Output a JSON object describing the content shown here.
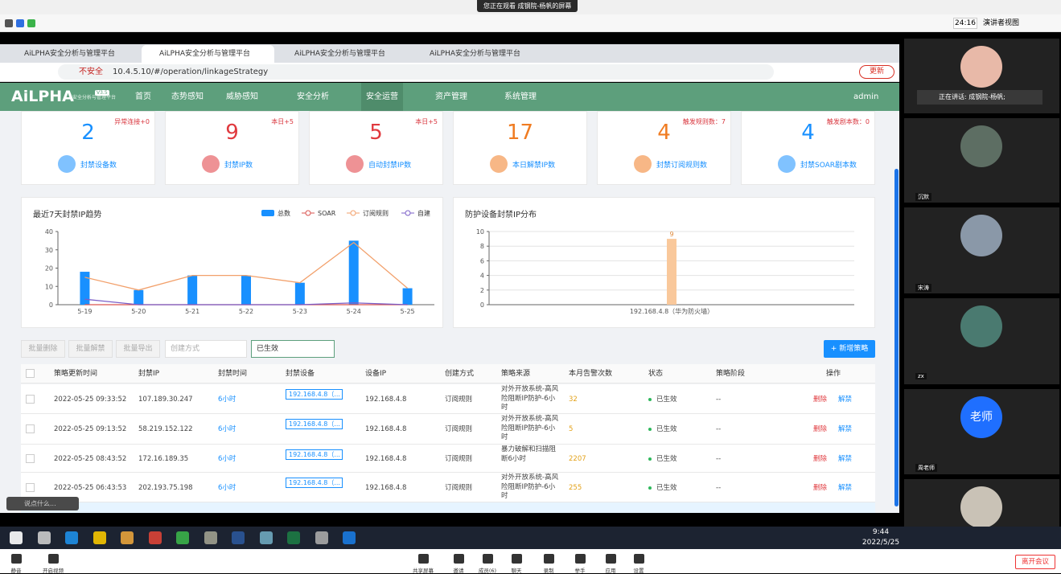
{
  "meeting": {
    "banner": "您正在观看 成钢院-杨帆的屏幕",
    "timer": "24:16",
    "view": "演讲者视图",
    "speaking": "正在讲话: 成钢院-杨帆;"
  },
  "browser": {
    "tabs": [
      "AiLPHA安全分析与管理平台",
      "AiLPHA安全分析与管理平台",
      "AiLPHA安全分析与管理平台",
      "AiLPHA安全分析与管理平台"
    ],
    "insecure": "不安全",
    "url": "10.4.5.10/#/operation/linkageStrategy",
    "update": "更新"
  },
  "app": {
    "logo": "AiLPHA",
    "subtitle": "安全分析与管理平台",
    "version": "V3.5",
    "nav": [
      "首页",
      "态势感知",
      "威胁感知",
      "安全分析",
      "安全运营",
      "资产管理",
      "系统管理"
    ],
    "user": "admin"
  },
  "cards": [
    {
      "note": "异常连接+0",
      "value": 2,
      "label": "封禁设备数",
      "color": "#1890ff"
    },
    {
      "note": "本日+5",
      "value": 9,
      "label": "封禁IP数",
      "color": "#e0393e"
    },
    {
      "note": "本日+5",
      "value": 5,
      "label": "自动封禁IP数",
      "color": "#e0393e"
    },
    {
      "value": 17,
      "label": "本日解禁IP数",
      "color": "#f07c22"
    },
    {
      "note": "触发规则数：7",
      "value": 4,
      "label": "封禁订阅规则数",
      "color": "#f07c22"
    },
    {
      "note": "触发剧本数：0",
      "value": 4,
      "label": "封禁SOAR剧本数",
      "color": "#1890ff"
    }
  ],
  "chart_data": [
    {
      "type": "combo",
      "title": "最近7天封禁IP趋势",
      "categories": [
        "5-19",
        "5-20",
        "5-21",
        "5-22",
        "5-23",
        "5-24",
        "5-25"
      ],
      "series": [
        {
          "name": "总数",
          "type": "bar",
          "color": "#1890ff",
          "values": [
            18,
            8,
            16,
            16,
            12,
            35,
            9
          ]
        },
        {
          "name": "SOAR",
          "type": "line",
          "color": "#d9534f",
          "values": [
            0,
            0,
            0,
            0,
            0,
            0,
            0
          ]
        },
        {
          "name": "订阅规则",
          "type": "line",
          "color": "#f2a06b",
          "values": [
            15,
            8,
            16,
            16,
            12,
            34,
            9
          ]
        },
        {
          "name": "自建",
          "type": "line",
          "color": "#7b5fc8",
          "values": [
            3,
            0,
            0,
            0,
            0,
            1,
            0
          ]
        }
      ],
      "ylim": [
        0,
        40
      ],
      "yticks": [
        0,
        10,
        20,
        30,
        40
      ],
      "grid": false,
      "legend": "top-right"
    },
    {
      "type": "bar",
      "title": "防护设备封禁IP分布",
      "categories": [
        "192.168.4.8（华为防火墙）"
      ],
      "values": [
        9
      ],
      "color": "#f9c89b",
      "ylim": [
        0,
        10
      ],
      "yticks": [
        0,
        2,
        4,
        6,
        8,
        10
      ],
      "grid": true
    }
  ],
  "toolbar": {
    "buttons": [
      "批量删除",
      "批量解禁",
      "批量导出"
    ],
    "selects": [
      "创建方式",
      "已生效"
    ],
    "add": "+ 新增策略"
  },
  "table": {
    "headers": [
      "策略更新时间",
      "封禁IP",
      "封禁时间",
      "封禁设备",
      "设备IP",
      "创建方式",
      "策略来源",
      "本月告警次数",
      "状态",
      "策略阶段",
      "操作"
    ],
    "rows": [
      [
        "2022-05-25 09:33:52",
        "107.189.30.247",
        "6小时",
        "192.168.4.8（...",
        "192.168.4.8",
        "订阅规则",
        "对外开放系统-高风险阻断IP防护-6小时",
        "32",
        "已生效",
        "--",
        "删除",
        "解禁"
      ],
      [
        "2022-05-25 09:13:52",
        "58.219.152.122",
        "6小时",
        "192.168.4.8（...",
        "192.168.4.8",
        "订阅规则",
        "对外开放系统-高风险阻断IP防护-6小时",
        "5",
        "已生效",
        "--",
        "删除",
        "解禁"
      ],
      [
        "2022-05-25 08:43:52",
        "172.16.189.35",
        "6小时",
        "192.168.4.8（...",
        "192.168.4.8",
        "订阅规则",
        "暴力破解和扫描阻断6小时",
        "2207",
        "已生效",
        "--",
        "删除",
        "解禁"
      ],
      [
        "2022-05-25 06:43:53",
        "202.193.75.198",
        "6小时",
        "192.168.4.8（...",
        "192.168.4.8",
        "订阅规则",
        "对外开放系统-高风险阻断IP防护-6小时",
        "255",
        "已生效",
        "--",
        "删除",
        "解禁"
      ]
    ]
  },
  "participants": [
    "沉默",
    "宋涛",
    "zx",
    "老师",
    "周老师"
  ],
  "chat_hint": "说点什么...",
  "taskbar": {
    "time": "9:44",
    "date": "2022/5/25"
  },
  "controls": [
    "静音",
    "开启视频",
    "共享屏幕",
    "邀请",
    "成员(6)",
    "聊天",
    "录制",
    "举手",
    "应用",
    "设置"
  ],
  "leave": "离开会议"
}
